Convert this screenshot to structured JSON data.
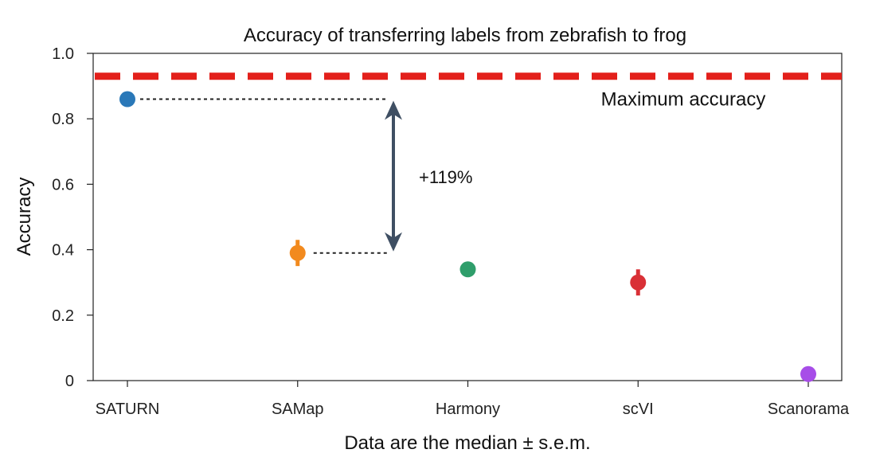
{
  "chart_data": {
    "type": "scatter",
    "title": "Accuracy of transferring labels  from zebrafish to frog",
    "xlabel": "Data are the median ± s.e.m.",
    "ylabel": "Accuracy",
    "ylim": [
      0,
      1.0
    ],
    "yticks": [
      {
        "value": 0,
        "label": "0"
      },
      {
        "value": 0.2,
        "label": "0.2"
      },
      {
        "value": 0.4,
        "label": "0.4"
      },
      {
        "value": 0.6,
        "label": "0.6"
      },
      {
        "value": 0.8,
        "label": "0.8"
      },
      {
        "value": 1.0,
        "label": "1.0"
      }
    ],
    "categories": [
      "SATURN",
      "SAMap",
      "Harmony",
      "scVI",
      "Scanorama"
    ],
    "points": [
      {
        "category": "SATURN",
        "value": 0.86,
        "sem": 0.02,
        "color": "#2a78b8"
      },
      {
        "category": "SAMap",
        "value": 0.39,
        "sem": 0.04,
        "color": "#f28a1e"
      },
      {
        "category": "Harmony",
        "value": 0.34,
        "sem": 0.0,
        "color": "#2f9e6b"
      },
      {
        "category": "scVI",
        "value": 0.3,
        "sem": 0.04,
        "color": "#d93036"
      },
      {
        "category": "Scanorama",
        "value": 0.02,
        "sem": 0.0,
        "color": "#a74de8"
      }
    ],
    "reference_line": {
      "value": 0.93,
      "label": "Maximum accuracy",
      "color": "#e3201b"
    },
    "comparison": {
      "from": "SATURN",
      "to": "SAMap",
      "label": "+119%",
      "arrow_color": "#3f4f63"
    },
    "grid": false
  }
}
